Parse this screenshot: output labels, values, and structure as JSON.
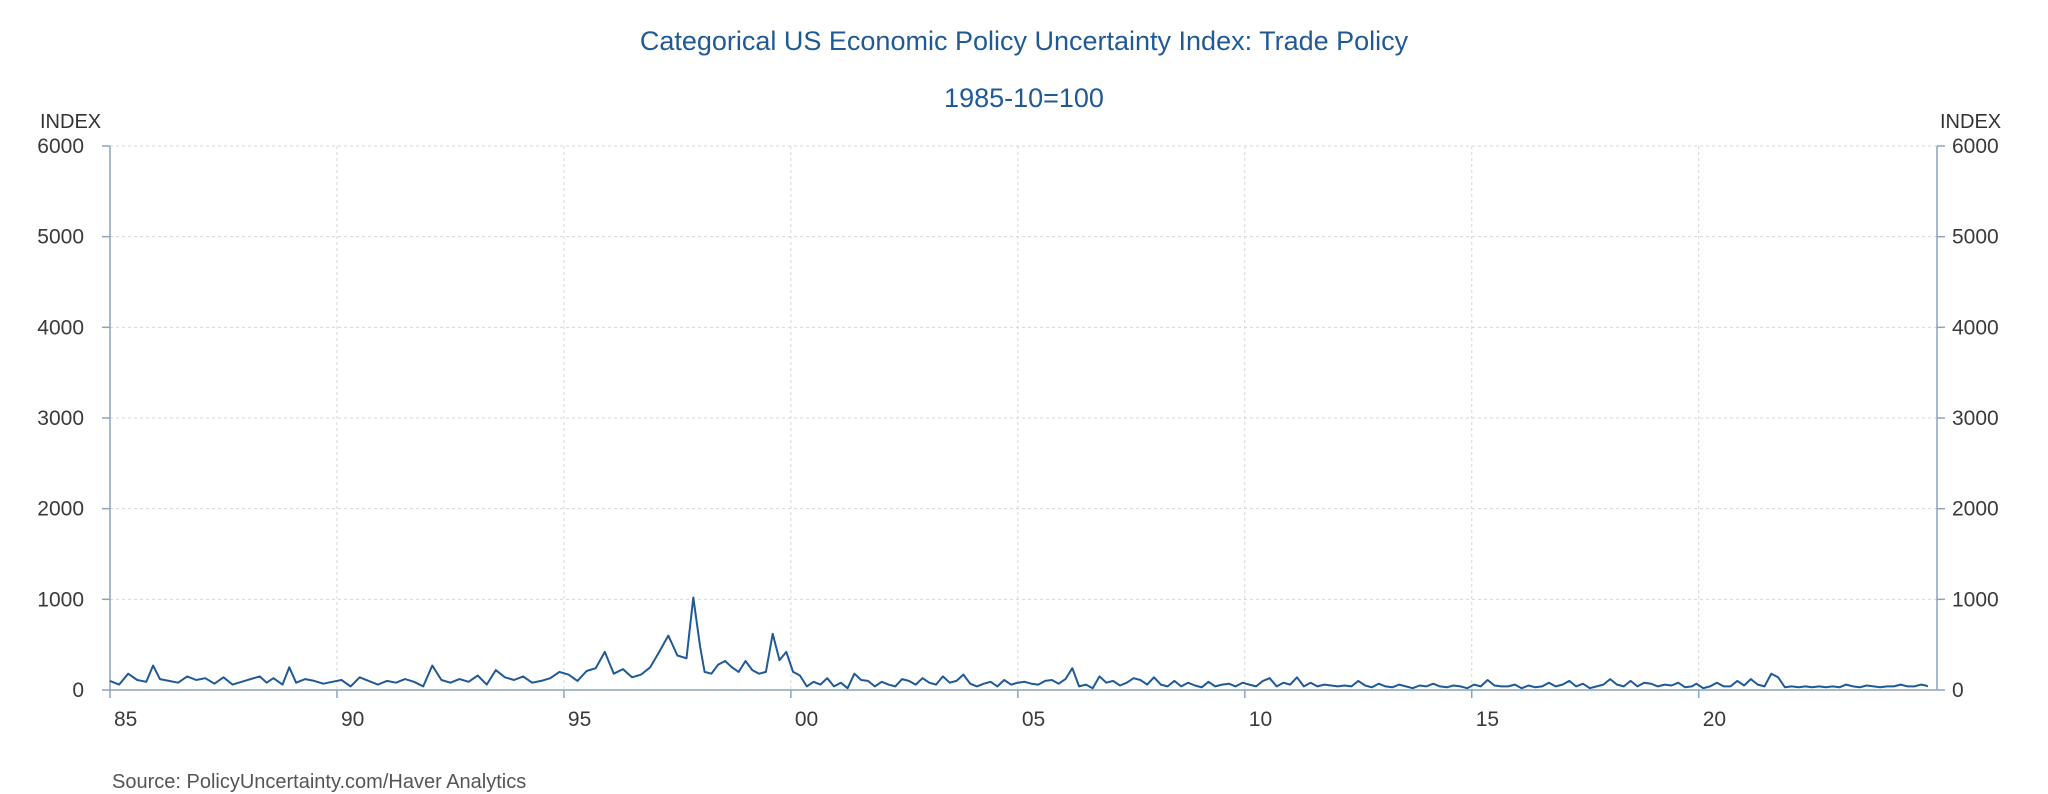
{
  "chart_data": {
    "type": "line",
    "title": "Categorical US Economic Policy Uncertainty Index: Trade Policy",
    "subtitle": "1985-10=100",
    "ylabel_left": "INDEX",
    "ylabel_right": "INDEX",
    "source": "Source:  PolicyUncertainty.com/Haver Analytics",
    "line_color": "#1f5a96",
    "xlim": [
      1985.0,
      2025.25
    ],
    "ylim": [
      0,
      6000
    ],
    "x_ticks": [
      {
        "value": 1985,
        "label": "85"
      },
      {
        "value": 1990,
        "label": "90"
      },
      {
        "value": 1995,
        "label": "95"
      },
      {
        "value": 2000,
        "label": "00"
      },
      {
        "value": 2005,
        "label": "05"
      },
      {
        "value": 2010,
        "label": "10"
      },
      {
        "value": 2015,
        "label": "15"
      },
      {
        "value": 2020,
        "label": "20"
      }
    ],
    "y_ticks": [
      0,
      1000,
      2000,
      3000,
      4000,
      5000,
      6000
    ],
    "grid": true,
    "series": [
      {
        "points": [
          [
            1985.0,
            100
          ],
          [
            1985.2,
            60
          ],
          [
            1985.4,
            180
          ],
          [
            1985.6,
            110
          ],
          [
            1985.8,
            90
          ],
          [
            1985.95,
            270
          ],
          [
            1986.1,
            120
          ],
          [
            1986.3,
            100
          ],
          [
            1986.5,
            80
          ],
          [
            1986.7,
            150
          ],
          [
            1986.9,
            110
          ],
          [
            1987.1,
            130
          ],
          [
            1987.3,
            70
          ],
          [
            1987.5,
            140
          ],
          [
            1987.7,
            60
          ],
          [
            1987.9,
            90
          ],
          [
            1988.1,
            120
          ],
          [
            1988.3,
            150
          ],
          [
            1988.45,
            80
          ],
          [
            1988.6,
            130
          ],
          [
            1988.8,
            60
          ],
          [
            1988.95,
            250
          ],
          [
            1989.1,
            80
          ],
          [
            1989.3,
            120
          ],
          [
            1989.5,
            100
          ],
          [
            1989.7,
            70
          ],
          [
            1989.9,
            90
          ],
          [
            1990.1,
            110
          ],
          [
            1990.3,
            40
          ],
          [
            1990.5,
            140
          ],
          [
            1990.7,
            100
          ],
          [
            1990.9,
            60
          ],
          [
            1991.1,
            100
          ],
          [
            1991.3,
            80
          ],
          [
            1991.5,
            120
          ],
          [
            1991.7,
            90
          ],
          [
            1991.9,
            40
          ],
          [
            1992.1,
            270
          ],
          [
            1992.3,
            110
          ],
          [
            1992.5,
            80
          ],
          [
            1992.7,
            120
          ],
          [
            1992.9,
            90
          ],
          [
            1993.1,
            160
          ],
          [
            1993.3,
            60
          ],
          [
            1993.5,
            220
          ],
          [
            1993.7,
            140
          ],
          [
            1993.9,
            110
          ],
          [
            1994.1,
            150
          ],
          [
            1994.3,
            80
          ],
          [
            1994.5,
            100
          ],
          [
            1994.7,
            130
          ],
          [
            1994.9,
            200
          ],
          [
            1995.1,
            170
          ],
          [
            1995.3,
            100
          ],
          [
            1995.5,
            210
          ],
          [
            1995.7,
            240
          ],
          [
            1995.9,
            420
          ],
          [
            1996.1,
            180
          ],
          [
            1996.3,
            230
          ],
          [
            1996.5,
            140
          ],
          [
            1996.7,
            170
          ],
          [
            1996.9,
            250
          ],
          [
            1997.1,
            420
          ],
          [
            1997.3,
            600
          ],
          [
            1997.5,
            380
          ],
          [
            1997.7,
            350
          ],
          [
            1997.85,
            1020
          ],
          [
            1998.0,
            480
          ],
          [
            1998.1,
            200
          ],
          [
            1998.25,
            180
          ],
          [
            1998.4,
            280
          ],
          [
            1998.55,
            320
          ],
          [
            1998.7,
            250
          ],
          [
            1998.85,
            200
          ],
          [
            1999.0,
            320
          ],
          [
            1999.15,
            220
          ],
          [
            1999.3,
            180
          ],
          [
            1999.45,
            200
          ],
          [
            1999.6,
            620
          ],
          [
            1999.75,
            330
          ],
          [
            1999.9,
            420
          ],
          [
            2000.05,
            200
          ],
          [
            2000.2,
            160
          ],
          [
            2000.35,
            40
          ],
          [
            2000.5,
            90
          ],
          [
            2000.65,
            60
          ],
          [
            2000.8,
            130
          ],
          [
            2000.95,
            40
          ],
          [
            2001.1,
            80
          ],
          [
            2001.25,
            20
          ],
          [
            2001.4,
            180
          ],
          [
            2001.55,
            110
          ],
          [
            2001.7,
            100
          ],
          [
            2001.85,
            40
          ],
          [
            2002.0,
            90
          ],
          [
            2002.15,
            60
          ],
          [
            2002.3,
            40
          ],
          [
            2002.45,
            120
          ],
          [
            2002.6,
            100
          ],
          [
            2002.75,
            60
          ],
          [
            2002.9,
            130
          ],
          [
            2003.05,
            80
          ],
          [
            2003.2,
            60
          ],
          [
            2003.35,
            150
          ],
          [
            2003.5,
            80
          ],
          [
            2003.65,
            100
          ],
          [
            2003.8,
            170
          ],
          [
            2003.95,
            70
          ],
          [
            2004.1,
            40
          ],
          [
            2004.25,
            70
          ],
          [
            2004.4,
            90
          ],
          [
            2004.55,
            40
          ],
          [
            2004.7,
            110
          ],
          [
            2004.85,
            60
          ],
          [
            2005.0,
            80
          ],
          [
            2005.15,
            90
          ],
          [
            2005.3,
            70
          ],
          [
            2005.45,
            60
          ],
          [
            2005.6,
            100
          ],
          [
            2005.75,
            110
          ],
          [
            2005.9,
            70
          ],
          [
            2006.05,
            120
          ],
          [
            2006.2,
            240
          ],
          [
            2006.35,
            40
          ],
          [
            2006.5,
            60
          ],
          [
            2006.65,
            20
          ],
          [
            2006.8,
            150
          ],
          [
            2006.95,
            80
          ],
          [
            2007.1,
            100
          ],
          [
            2007.25,
            50
          ],
          [
            2007.4,
            80
          ],
          [
            2007.55,
            130
          ],
          [
            2007.7,
            110
          ],
          [
            2007.85,
            60
          ],
          [
            2008.0,
            140
          ],
          [
            2008.15,
            60
          ],
          [
            2008.3,
            40
          ],
          [
            2008.45,
            100
          ],
          [
            2008.6,
            40
          ],
          [
            2008.75,
            80
          ],
          [
            2008.9,
            50
          ],
          [
            2009.05,
            30
          ],
          [
            2009.2,
            90
          ],
          [
            2009.35,
            40
          ],
          [
            2009.5,
            60
          ],
          [
            2009.65,
            70
          ],
          [
            2009.8,
            40
          ],
          [
            2009.95,
            80
          ],
          [
            2010.1,
            60
          ],
          [
            2010.25,
            40
          ],
          [
            2010.4,
            100
          ],
          [
            2010.55,
            130
          ],
          [
            2010.7,
            40
          ],
          [
            2010.85,
            80
          ],
          [
            2011.0,
            60
          ],
          [
            2011.15,
            140
          ],
          [
            2011.3,
            40
          ],
          [
            2011.45,
            80
          ],
          [
            2011.6,
            40
          ],
          [
            2011.75,
            60
          ],
          [
            2011.9,
            50
          ],
          [
            2012.05,
            40
          ],
          [
            2012.2,
            50
          ],
          [
            2012.35,
            40
          ],
          [
            2012.5,
            100
          ],
          [
            2012.65,
            50
          ],
          [
            2012.8,
            30
          ],
          [
            2012.95,
            70
          ],
          [
            2013.1,
            40
          ],
          [
            2013.25,
            30
          ],
          [
            2013.4,
            60
          ],
          [
            2013.55,
            40
          ],
          [
            2013.7,
            20
          ],
          [
            2013.85,
            50
          ],
          [
            2014.0,
            40
          ],
          [
            2014.15,
            70
          ],
          [
            2014.3,
            40
          ],
          [
            2014.45,
            30
          ],
          [
            2014.6,
            50
          ],
          [
            2014.75,
            40
          ],
          [
            2014.9,
            20
          ],
          [
            2015.05,
            60
          ],
          [
            2015.2,
            40
          ],
          [
            2015.35,
            110
          ],
          [
            2015.5,
            50
          ],
          [
            2015.65,
            40
          ],
          [
            2015.8,
            40
          ],
          [
            2015.95,
            60
          ],
          [
            2016.1,
            20
          ],
          [
            2016.25,
            50
          ],
          [
            2016.4,
            30
          ],
          [
            2016.55,
            40
          ],
          [
            2016.7,
            80
          ],
          [
            2016.85,
            40
          ],
          [
            2017.0,
            60
          ],
          [
            2017.15,
            100
          ],
          [
            2017.3,
            40
          ],
          [
            2017.45,
            70
          ],
          [
            2017.6,
            20
          ],
          [
            2017.75,
            40
          ],
          [
            2017.9,
            60
          ],
          [
            2018.05,
            120
          ],
          [
            2018.2,
            60
          ],
          [
            2018.35,
            40
          ],
          [
            2018.5,
            100
          ],
          [
            2018.65,
            40
          ],
          [
            2018.8,
            80
          ],
          [
            2018.95,
            70
          ],
          [
            2019.1,
            40
          ],
          [
            2019.25,
            60
          ],
          [
            2019.4,
            50
          ],
          [
            2019.55,
            80
          ],
          [
            2019.7,
            30
          ],
          [
            2019.85,
            40
          ],
          [
            2019.95,
            70
          ],
          [
            2020.1,
            20
          ],
          [
            2020.25,
            40
          ],
          [
            2020.4,
            80
          ],
          [
            2020.55,
            40
          ],
          [
            2020.7,
            40
          ],
          [
            2020.85,
            100
          ],
          [
            2021.0,
            50
          ],
          [
            2021.15,
            120
          ],
          [
            2021.3,
            60
          ],
          [
            2021.45,
            40
          ],
          [
            2021.6,
            180
          ],
          [
            2021.75,
            140
          ],
          [
            2021.9,
            30
          ],
          [
            2022.05,
            40
          ],
          [
            2022.2,
            30
          ],
          [
            2022.35,
            40
          ],
          [
            2022.5,
            30
          ],
          [
            2022.65,
            40
          ],
          [
            2022.8,
            30
          ],
          [
            2022.95,
            40
          ],
          [
            2023.1,
            30
          ],
          [
            2023.25,
            60
          ],
          [
            2023.4,
            40
          ],
          [
            2023.55,
            30
          ],
          [
            2023.7,
            50
          ],
          [
            2023.85,
            40
          ],
          [
            2024.0,
            30
          ],
          [
            2024.15,
            40
          ],
          [
            2024.3,
            40
          ],
          [
            2024.45,
            60
          ],
          [
            2024.6,
            40
          ],
          [
            2024.75,
            40
          ],
          [
            2024.9,
            60
          ],
          [
            2025.0,
            50
          ],
          [
            2025.05,
            40
          ]
        ]
      }
    ]
  }
}
